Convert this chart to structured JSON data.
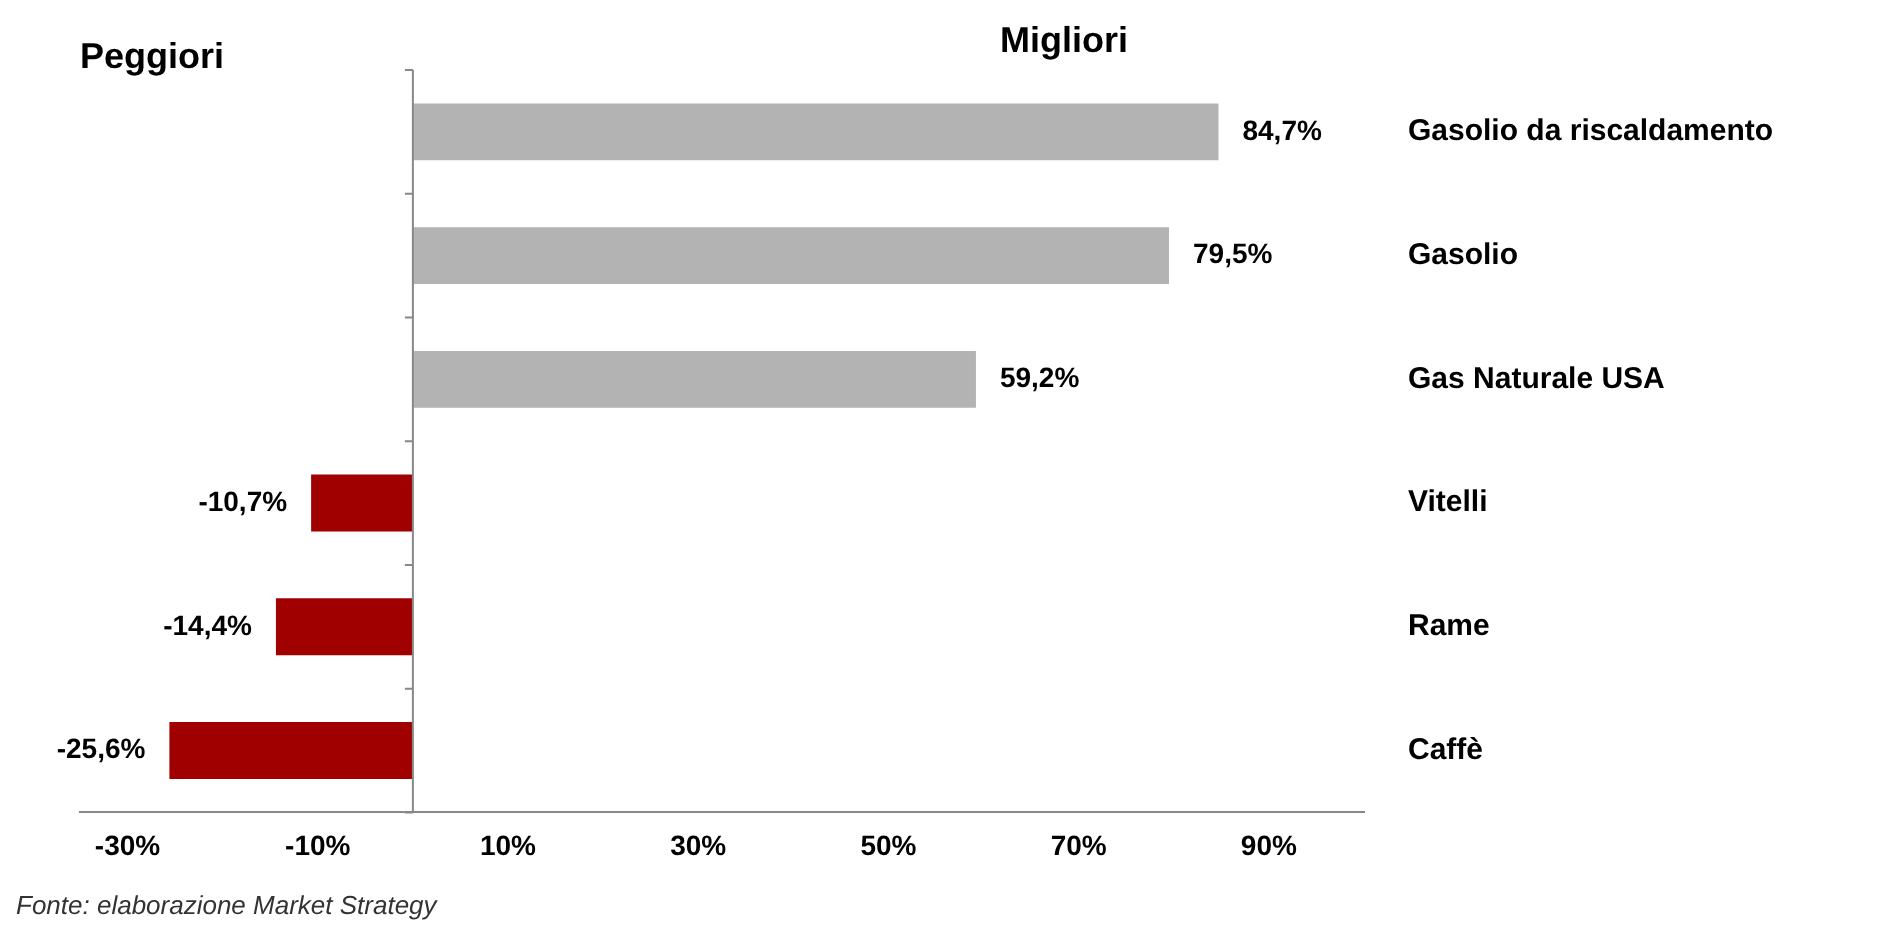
{
  "chart_data": {
    "type": "bar",
    "orientation": "horizontal",
    "categories": [
      "Gasolio da riscaldamento",
      "Gasolio",
      "Gas Naturale USA",
      "Vitelli",
      "Rame",
      "Caffè"
    ],
    "values": [
      84.7,
      79.5,
      59.2,
      -10.7,
      -14.4,
      -25.6
    ],
    "colors": [
      "#b3b3b3",
      "#b3b3b3",
      "#b3b3b3",
      "#a00000",
      "#a00000",
      "#a00000"
    ],
    "value_labels": [
      "84,7%",
      "79,5%",
      "59,2%",
      "-10,7%",
      "-14,4%",
      "-25,6%"
    ],
    "xlim": [
      -35,
      100
    ],
    "xticks": [
      {
        "value": -30,
        "label": "-30%"
      },
      {
        "value": -10,
        "label": "-10%"
      },
      {
        "value": 10,
        "label": "10%"
      },
      {
        "value": 30,
        "label": "30%"
      },
      {
        "value": 50,
        "label": "50%"
      },
      {
        "value": 70,
        "label": "70%"
      },
      {
        "value": 90,
        "label": "90%"
      }
    ],
    "grid": false,
    "legend": false,
    "annotations": [
      "Peggiori",
      "Migliori",
      "Fonte: elaborazione Market Strategy"
    ]
  }
}
